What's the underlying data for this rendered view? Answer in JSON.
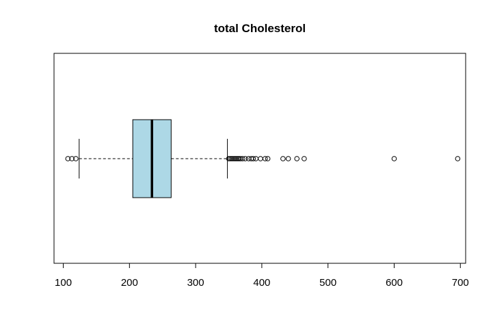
{
  "chart_data": {
    "type": "boxplot",
    "orientation": "horizontal",
    "title": "total Cholesterol",
    "xlabel": "",
    "ylabel": "",
    "xlim": [
      86,
      708
    ],
    "x_ticks": [
      100,
      200,
      300,
      400,
      500,
      600,
      700
    ],
    "x_tick_labels": [
      "100",
      "200",
      "300",
      "400",
      "500",
      "600",
      "700"
    ],
    "grid": false,
    "box": {
      "whisker_low": 124,
      "q1": 205,
      "median": 234,
      "q3": 263,
      "whisker_high": 348
    },
    "outliers": [
      107,
      113,
      119,
      350,
      352,
      354,
      356,
      358,
      360,
      362,
      364,
      366,
      368,
      371,
      375,
      380,
      384,
      387,
      391,
      398,
      405,
      409,
      432,
      440,
      453,
      464,
      600,
      696
    ],
    "colors": {
      "box_fill": "#add8e6",
      "stroke": "#000000"
    }
  }
}
